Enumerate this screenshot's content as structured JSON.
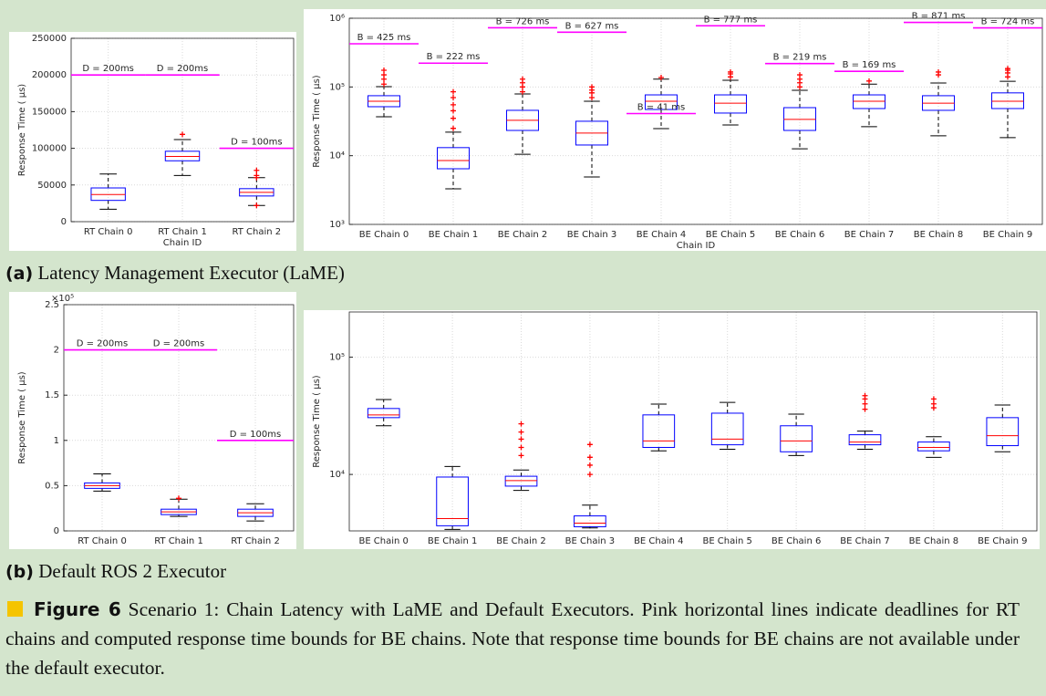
{
  "chart_data": [
    {
      "type": "boxplot",
      "xlabel": "Chain ID",
      "ylabel": "Response Time (  μs)",
      "categories": [
        "RT Chain 0",
        "RT Chain 1",
        "RT Chain 2"
      ],
      "boxes": [
        {
          "whislo": 17000,
          "q1": 29000,
          "med": 37000,
          "q3": 46000,
          "whishi": 65000,
          "outliers": [],
          "bound": 200000,
          "bound_label": "D = 200ms"
        },
        {
          "whislo": 63000,
          "q1": 83000,
          "med": 89000,
          "q3": 96000,
          "whishi": 112000,
          "outliers": [
            119000
          ],
          "bound": 200000,
          "bound_label": "D = 200ms"
        },
        {
          "whislo": 22000,
          "q1": 35000,
          "med": 40000,
          "q3": 45000,
          "whishi": 60000,
          "outliers": [
            22000,
            60000,
            63000,
            70000
          ],
          "bound": 100000,
          "bound_label": "D = 100ms"
        }
      ],
      "ylim": [
        0,
        250000
      ],
      "yticks": [
        0,
        50000,
        100000,
        150000,
        200000,
        250000
      ],
      "log_scale": false,
      "grid": true,
      "box_color": "#0000ff",
      "median_color": "#ff0000",
      "outlier_color": "#ff0000",
      "bound_color": "#ff00ff"
    },
    {
      "type": "boxplot",
      "xlabel": "Chain ID",
      "ylabel": "Response Time (  μs)",
      "categories": [
        "BE Chain 0",
        "BE Chain 1",
        "BE Chain 2",
        "BE Chain 3",
        "BE Chain 4",
        "BE Chain 5",
        "BE Chain 6",
        "BE Chain 7",
        "BE Chain 8",
        "BE Chain 9"
      ],
      "boxes": [
        {
          "whislo": 36900,
          "q1": 51600,
          "med": 62000,
          "q3": 74600,
          "whishi": 101000,
          "outliers": [
            110000,
            130000,
            150000,
            175000
          ],
          "bound": 425000,
          "bound_label": "B = 425 ms"
        },
        {
          "whislo": 3300,
          "q1": 6450,
          "med": 8500,
          "q3": 13100,
          "whishi": 22000,
          "outliers": [
            25000,
            35000,
            45000,
            55000,
            70000,
            85000
          ],
          "bound": 222000,
          "bound_label": "B = 222 ms"
        },
        {
          "whislo": 10500,
          "q1": 23300,
          "med": 32700,
          "q3": 45700,
          "whishi": 79000,
          "outliers": [
            85000,
            100000,
            115000,
            130000
          ],
          "bound": 726000,
          "bound_label": "B = 726 ms"
        },
        {
          "whislo": 4900,
          "q1": 14300,
          "med": 21300,
          "q3": 31700,
          "whishi": 62000,
          "outliers": [
            70000,
            82000,
            90000,
            100000
          ],
          "bound": 627000,
          "bound_label": "B = 627 ms"
        },
        {
          "whislo": 24800,
          "q1": 47000,
          "med": 62000,
          "q3": 76700,
          "whishi": 130000,
          "outliers": [
            137000
          ],
          "bound": 41000,
          "bound_label": "B = 41 ms"
        },
        {
          "whislo": 28000,
          "q1": 41700,
          "med": 58000,
          "q3": 76700,
          "whishi": 125000,
          "outliers": [
            140000,
            155000,
            165000
          ],
          "bound": 777000,
          "bound_label": "B = 777 ms"
        },
        {
          "whislo": 12600,
          "q1": 23300,
          "med": 33700,
          "q3": 50000,
          "whishi": 89500,
          "outliers": [
            100000,
            115000,
            130000,
            150000
          ],
          "bound": 219000,
          "bound_label": "B = 219 ms"
        },
        {
          "whislo": 26400,
          "q1": 48500,
          "med": 62000,
          "q3": 76700,
          "whishi": 110000,
          "outliers": [
            122000
          ],
          "bound": 169000,
          "bound_label": "B = 169 ms"
        },
        {
          "whislo": 19500,
          "q1": 45700,
          "med": 58000,
          "q3": 74600,
          "whishi": 114000,
          "outliers": [
            150000,
            165000
          ],
          "bound": 871000,
          "bound_label": "B = 871 ms"
        },
        {
          "whislo": 18300,
          "q1": 48500,
          "med": 62000,
          "q3": 82000,
          "whishi": 121000,
          "outliers": [
            140000,
            160000,
            175000,
            185000
          ],
          "bound": 724000,
          "bound_label": "B = 724 ms"
        }
      ],
      "ylim": [
        1000,
        1000000
      ],
      "yticks": [
        {
          "value": 1000,
          "label": "10³"
        },
        {
          "value": 10000,
          "label": "10⁴"
        },
        {
          "value": 100000,
          "label": "10⁵"
        },
        {
          "value": 1000000,
          "label": "10⁶"
        }
      ],
      "log_scale": true,
      "grid": true,
      "box_color": "#0000ff",
      "median_color": "#ff0000",
      "outlier_color": "#ff0000",
      "bound_color": "#ff00ff"
    },
    {
      "type": "boxplot",
      "ylabel": "Response Time (  μs)",
      "axis_multiplier": "×10⁵",
      "categories": [
        "RT Chain 0",
        "RT Chain 1",
        "RT Chain 2"
      ],
      "boxes": [
        {
          "whislo": 44000,
          "q1": 47000,
          "med": 50000,
          "q3": 53000,
          "whishi": 63000,
          "outliers": [],
          "bound": 200000,
          "bound_label": "D = 200ms"
        },
        {
          "whislo": 16000,
          "q1": 18000,
          "med": 21000,
          "q3": 24000,
          "whishi": 35000,
          "outliers": [
            36000
          ],
          "bound": 200000,
          "bound_label": "D = 200ms"
        },
        {
          "whislo": 11000,
          "q1": 16000,
          "med": 20000,
          "q3": 24000,
          "whishi": 30000,
          "outliers": [],
          "bound": 100000,
          "bound_label": "D = 100ms"
        }
      ],
      "ylim": [
        0,
        250000
      ],
      "yticks": [
        0,
        {
          "value": 50000,
          "label": "0.5"
        },
        {
          "value": 100000,
          "label": "1"
        },
        {
          "value": 150000,
          "label": "1.5"
        },
        {
          "value": 200000,
          "label": "2"
        },
        {
          "value": 250000,
          "label": "2.5"
        }
      ],
      "log_scale": false,
      "grid": true,
      "box_color": "#0000ff",
      "median_color": "#ff0000",
      "outlier_color": "#ff0000",
      "bound_color": "#ff00ff"
    },
    {
      "type": "boxplot",
      "ylabel": "Response Time (  μs)",
      "categories": [
        "BE Chain 0",
        "BE Chain 1",
        "BE Chain 2",
        "BE Chain 3",
        "BE Chain 4",
        "BE Chain 5",
        "BE Chain 6",
        "BE Chain 7",
        "BE Chain 8",
        "BE Chain 9"
      ],
      "boxes": [
        {
          "whislo": 26000,
          "q1": 30500,
          "med": 32200,
          "q3": 36500,
          "whishi": 43500,
          "outliers": []
        },
        {
          "whislo": 3400,
          "q1": 3650,
          "med": 4200,
          "q3": 9500,
          "whishi": 11700,
          "outliers": []
        },
        {
          "whislo": 7300,
          "q1": 7950,
          "med": 8850,
          "q3": 9650,
          "whishi": 10900,
          "outliers": [
            14500,
            17000,
            20000,
            23000,
            27000
          ]
        },
        {
          "whislo": 3500,
          "q1": 3580,
          "med": 3840,
          "q3": 4430,
          "whishi": 5470,
          "outliers": [
            10000,
            12000,
            14000,
            18000
          ]
        },
        {
          "whislo": 15900,
          "q1": 17000,
          "med": 19300,
          "q3": 32200,
          "whishi": 39800,
          "outliers": []
        },
        {
          "whislo": 16400,
          "q1": 17900,
          "med": 20000,
          "q3": 33300,
          "whishi": 41200,
          "outliers": []
        },
        {
          "whislo": 14500,
          "q1": 15600,
          "med": 19300,
          "q3": 26000,
          "whishi": 32700,
          "outliers": []
        },
        {
          "whislo": 16400,
          "q1": 17900,
          "med": 18900,
          "q3": 21800,
          "whishi": 23400,
          "outliers": [
            36000,
            40000,
            44000,
            47000
          ]
        },
        {
          "whislo": 14000,
          "q1": 15900,
          "med": 17000,
          "q3": 18900,
          "whishi": 21000,
          "outliers": [
            37000,
            40000,
            44000
          ]
        },
        {
          "whislo": 15600,
          "q1": 17600,
          "med": 21400,
          "q3": 30500,
          "whishi": 39100,
          "outliers": []
        }
      ],
      "ylim": [
        3300,
        243000
      ],
      "yticks": [
        {
          "value": 10000,
          "label": "10⁴"
        },
        {
          "value": 100000,
          "label": "10⁵"
        }
      ],
      "log_scale": true,
      "grid": true,
      "box_color": "#0000ff",
      "median_color": "#ff0000",
      "outlier_color": "#ff0000",
      "bound_color": "#ff00ff"
    }
  ],
  "subfigures": [
    {
      "label": "(a)",
      "text": "Latency Management Executor (LaME)"
    },
    {
      "label": "(b)",
      "text": "Default ROS 2 Executor"
    }
  ],
  "caption": {
    "label": "Figure 6",
    "text": "Scenario 1: Chain Latency with LaME and Default Executors. Pink horizontal lines indicate deadlines for RT chains and computed response time bounds for BE chains. Note that response time bounds for BE chains are not available under the default executor."
  }
}
